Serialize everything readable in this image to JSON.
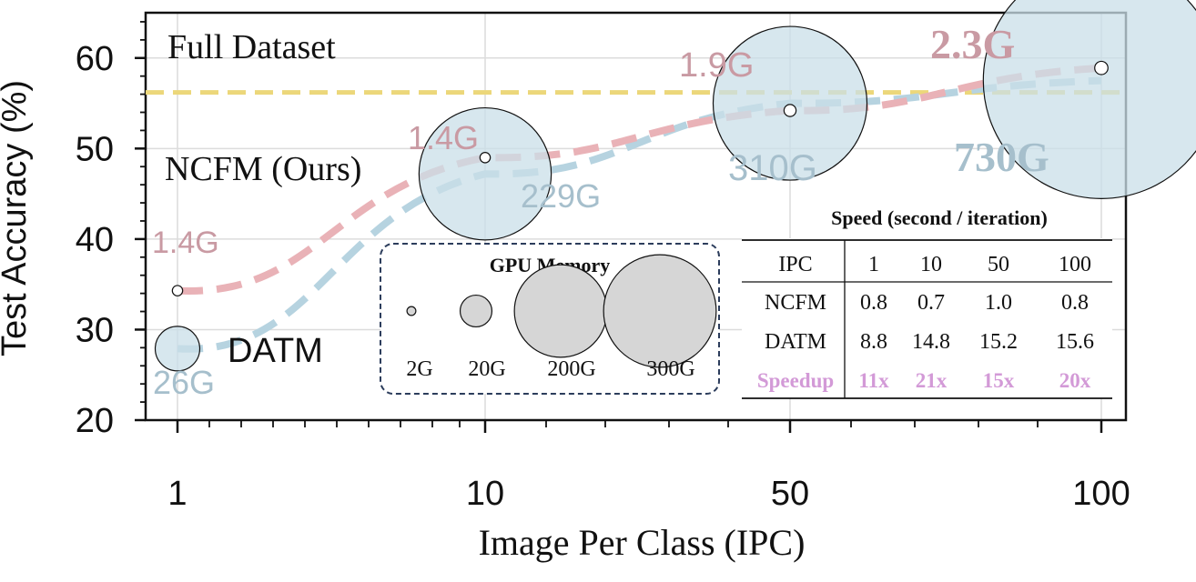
{
  "chart_data": {
    "type": "scatter",
    "xlabel": "Image Per Class (IPC)",
    "ylabel": "Test Accuracy (%)",
    "x_categories": [
      "1",
      "10",
      "50",
      "100"
    ],
    "ylim": [
      20,
      65
    ],
    "yticks": [
      "20",
      "30",
      "40",
      "50",
      "60"
    ],
    "grid": true,
    "full_dataset": {
      "label": "Full Dataset",
      "value": 56.2,
      "color": "#ecd77a"
    },
    "series": [
      {
        "name": "NCFM (Ours)",
        "color": "#e9b2b7",
        "label_color": "#c99aa3",
        "x": [
          "1",
          "10",
          "50",
          "100"
        ],
        "y": [
          34.3,
          49.0,
          54.2,
          58.9
        ],
        "memory_gb": [
          1.4,
          1.4,
          1.9,
          2.3
        ],
        "memory_labels": [
          "1.4G",
          "1.4G",
          "1.9G",
          "2.3G"
        ]
      },
      {
        "name": "DATM",
        "color": "#b6d3e0",
        "label_color": "#a6bfcc",
        "x": [
          "1",
          "10",
          "50",
          "100"
        ],
        "y": [
          27.9,
          47.2,
          55.0,
          57.5
        ],
        "memory_gb": [
          26,
          229,
          310,
          730
        ],
        "memory_labels": [
          "26G",
          "229G",
          "310G",
          "730G"
        ]
      }
    ],
    "gpu_memory_legend": {
      "title": "GPU Memory",
      "items": [
        {
          "label": "2G",
          "gb": 2
        },
        {
          "label": "20G",
          "gb": 20
        },
        {
          "label": "200G",
          "gb": 200
        },
        {
          "label": "300G",
          "gb": 300
        }
      ]
    },
    "speed_table": {
      "title": "Speed (second / iteration)",
      "header": [
        "IPC",
        "1",
        "10",
        "50",
        "100"
      ],
      "rows": [
        [
          "NCFM",
          "0.8",
          "0.7",
          "1.0",
          "0.8"
        ],
        [
          "DATM",
          "8.8",
          "14.8",
          "15.2",
          "15.6"
        ]
      ],
      "speedup": [
        "Speedup",
        "11x",
        "21x",
        "15x",
        "20x"
      ],
      "speedup_color": "#d39ad7"
    }
  }
}
